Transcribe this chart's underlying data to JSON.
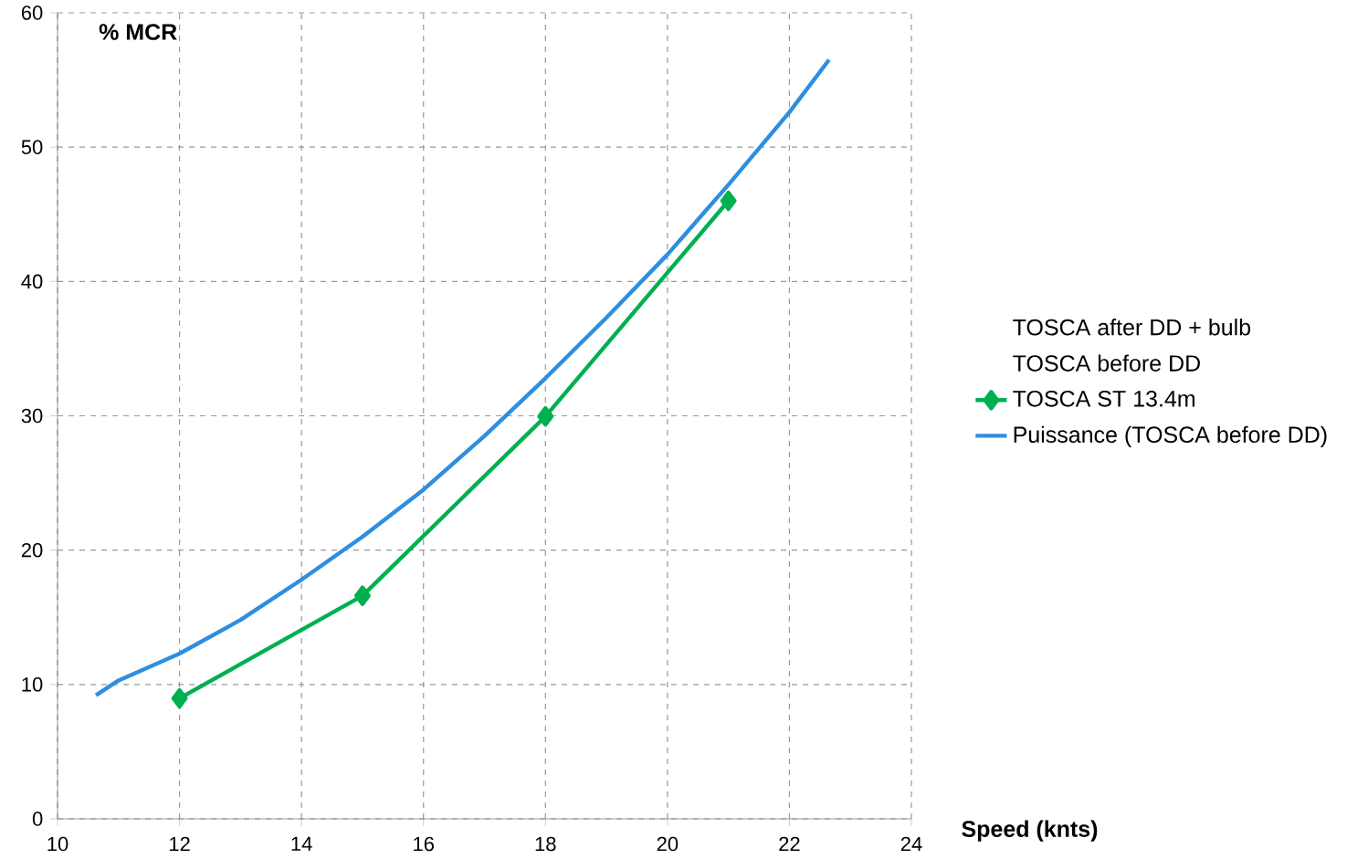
{
  "chart_data": {
    "type": "line",
    "xlabel": "Speed (knts)",
    "ylabel": "% MCR",
    "xlim": [
      10,
      24
    ],
    "xticks": [
      10,
      12,
      14,
      16,
      18,
      20,
      22,
      24
    ],
    "ylim": [
      0,
      60
    ],
    "yticks": [
      0,
      10,
      20,
      30,
      40,
      50,
      60
    ],
    "grid": true,
    "legend": "right",
    "series": [
      {
        "name": "TOSCA after DD + bulb"
      },
      {
        "name": "TOSCA before DD"
      },
      {
        "name": "TOSCA ST 13.4m",
        "color": "#00b050",
        "marker": "diamond",
        "x": [
          12,
          15,
          18,
          21
        ],
        "values": [
          8.97,
          16.6,
          29.96,
          46.0
        ]
      },
      {
        "name": "Puissance (TOSCA before DD)",
        "color": "#2e8ee0",
        "marker": "none",
        "x": [
          10.63,
          11,
          12,
          13,
          14,
          15,
          16,
          17,
          18,
          19,
          20,
          21,
          22,
          22.65
        ],
        "values": [
          9.2,
          10.3,
          12.3,
          14.8,
          17.8,
          21.0,
          24.5,
          28.5,
          32.8,
          37.3,
          42.0,
          47.2,
          52.6,
          56.5
        ]
      }
    ]
  }
}
